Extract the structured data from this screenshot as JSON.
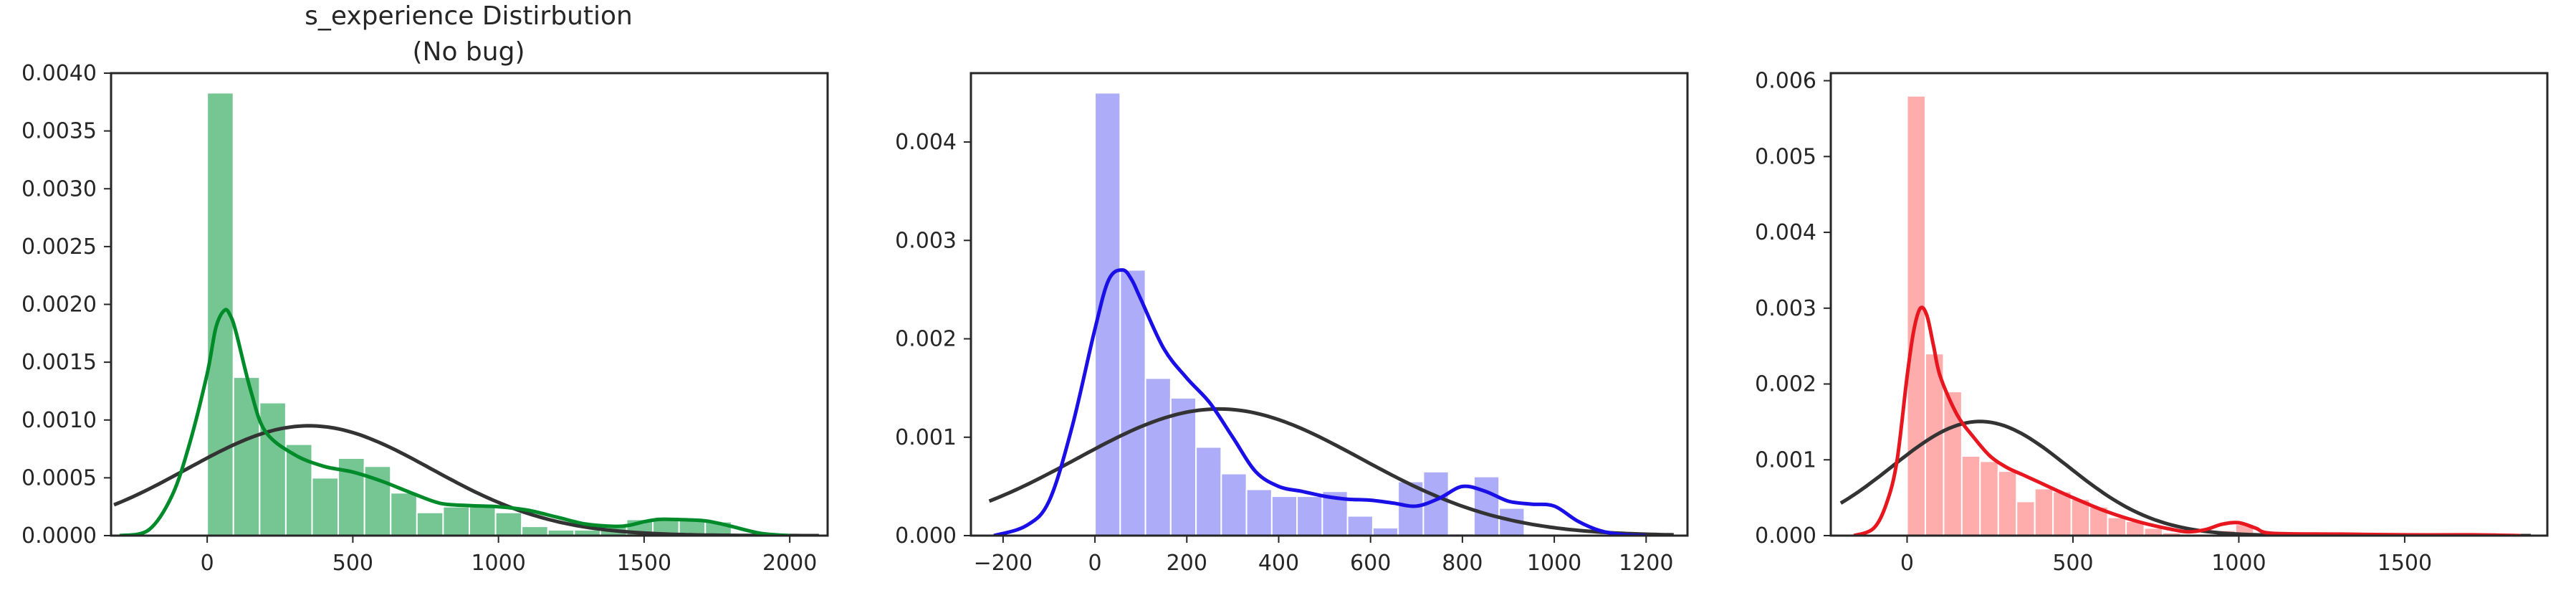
{
  "chart_data": [
    {
      "type": "bar",
      "title": "s_experience Distirbution",
      "subtitle": "(No bug)",
      "xlabel": "",
      "ylabel": "",
      "xlim": [
        -330,
        2130
      ],
      "ylim": [
        0,
        0.004
      ],
      "xticks": [
        0,
        500,
        1000,
        1500,
        2000
      ],
      "xtick_labels": [
        "0",
        "500",
        "1000",
        "1500",
        "2000"
      ],
      "yticks": [
        0,
        0.0005,
        0.001,
        0.0015,
        0.002,
        0.0025,
        0.003,
        0.0035,
        0.004
      ],
      "ytick_labels": [
        "0.0000",
        "0.0005",
        "0.0010",
        "0.0015",
        "0.0020",
        "0.0025",
        "0.0030",
        "0.0035",
        "0.0040"
      ],
      "grid": false,
      "hist_color": "#2ca85a",
      "kde_color": "#008b2b",
      "fit_color": "#333333",
      "bins": {
        "start": 0,
        "width": 90,
        "heights": [
          0.00383,
          0.00137,
          0.00115,
          0.00079,
          0.0005,
          0.00067,
          0.0006,
          0.00037,
          0.0002,
          0.00025,
          0.00025,
          0.0002,
          8e-05,
          5e-05,
          5e-05,
          0.0001,
          0.00014,
          0.00014,
          0.00013,
          0.00012
        ]
      },
      "kde": {
        "x": [
          -300,
          -200,
          -120,
          -60,
          0,
          30,
          60,
          80,
          100,
          150,
          200,
          300,
          400,
          500,
          600,
          700,
          800,
          900,
          1000,
          1100,
          1200,
          1300,
          1400,
          1450,
          1500,
          1550,
          1600,
          1700,
          1750,
          1800,
          1900,
          2000
        ],
        "y": [
          0,
          5e-05,
          0.00035,
          0.0008,
          0.0014,
          0.0018,
          0.00195,
          0.0019,
          0.00175,
          0.00125,
          0.0009,
          0.0007,
          0.0006,
          0.00055,
          0.00047,
          0.00037,
          0.00028,
          0.00026,
          0.00025,
          0.00022,
          0.00016,
          0.0001,
          8e-05,
          9e-05,
          0.00012,
          0.00014,
          0.00014,
          0.00013,
          0.00011,
          8e-05,
          2e-05,
          0
        ]
      },
      "fit": {
        "mean": 350,
        "std": 420,
        "xmin": -320,
        "xmax": 2100
      }
    },
    {
      "type": "bar",
      "title": "",
      "xlabel": "",
      "ylabel": "",
      "xlim": [
        -270,
        1290
      ],
      "ylim": [
        0,
        0.0047
      ],
      "xticks": [
        -200,
        0,
        200,
        400,
        600,
        800,
        1000,
        1200
      ],
      "xtick_labels": [
        "−200",
        "0",
        "200",
        "400",
        "600",
        "800",
        "1000",
        "1200"
      ],
      "yticks": [
        0,
        0.001,
        0.002,
        0.003,
        0.004
      ],
      "ytick_labels": [
        "0.000",
        "0.001",
        "0.002",
        "0.003",
        "0.004"
      ],
      "grid": false,
      "hist_color": "#7f7ff5",
      "kde_color": "#1a0fe6",
      "fit_color": "#333333",
      "bins": {
        "start": 0,
        "width": 55,
        "heights": [
          0.0045,
          0.0027,
          0.0016,
          0.0014,
          0.0009,
          0.00063,
          0.00047,
          0.0004,
          0.0004,
          0.00045,
          0.0002,
          8e-05,
          0.00055,
          0.00065,
          2e-05,
          0.0006,
          0.00028
        ]
      },
      "kde": {
        "x": [
          -220,
          -150,
          -100,
          -50,
          0,
          30,
          60,
          80,
          100,
          150,
          200,
          250,
          300,
          350,
          400,
          450,
          500,
          550,
          600,
          650,
          700,
          750,
          800,
          850,
          900,
          950,
          1000,
          1050,
          1100,
          1150,
          1200
        ],
        "y": [
          0,
          0.0001,
          0.00035,
          0.0011,
          0.0021,
          0.0026,
          0.0027,
          0.0026,
          0.0024,
          0.0019,
          0.0016,
          0.00135,
          0.001,
          0.00065,
          0.0005,
          0.00045,
          0.0004,
          0.00037,
          0.00036,
          0.00033,
          0.0003,
          0.00038,
          0.0005,
          0.00045,
          0.00035,
          0.00032,
          0.0003,
          0.00015,
          5e-05,
          1e-05,
          0
        ]
      },
      "fit": {
        "mean": 270,
        "std": 310,
        "xmin": -230,
        "xmax": 1260
      }
    },
    {
      "type": "bar",
      "title": "",
      "xlabel": "",
      "ylabel": "",
      "xlim": [
        -230,
        1930
      ],
      "ylim": [
        0,
        0.0061
      ],
      "xticks": [
        0,
        500,
        1000,
        1500
      ],
      "xtick_labels": [
        "0",
        "500",
        "1000",
        "1500"
      ],
      "yticks": [
        0,
        0.001,
        0.002,
        0.003,
        0.004,
        0.005,
        0.006
      ],
      "ytick_labels": [
        "0.000",
        "0.001",
        "0.002",
        "0.003",
        "0.004",
        "0.005",
        "0.006"
      ],
      "grid": false,
      "hist_color": "#ff8080",
      "kde_color": "#e8161e",
      "fit_color": "#333333",
      "bins": {
        "start": 0,
        "width": 55,
        "heights": [
          0.0058,
          0.0024,
          0.0019,
          0.00105,
          0.00098,
          0.00085,
          0.00045,
          0.00062,
          0.00058,
          0.00048,
          0.00038,
          0.00024,
          0.00019,
          0.0001,
          4e-05,
          2e-05,
          1e-05,
          7e-05,
          0.00015,
          2e-05,
          1e-05,
          1e-05
        ]
      },
      "kde": {
        "x": [
          -160,
          -100,
          -60,
          -30,
          0,
          20,
          40,
          60,
          80,
          100,
          150,
          200,
          250,
          300,
          350,
          400,
          500,
          600,
          700,
          800,
          850,
          900,
          950,
          1000,
          1050,
          1100,
          1300,
          1500,
          1700,
          1850
        ],
        "y": [
          0,
          0.0001,
          0.00045,
          0.001,
          0.0021,
          0.0027,
          0.003,
          0.0029,
          0.0025,
          0.0021,
          0.0016,
          0.0013,
          0.00105,
          0.0009,
          0.0008,
          0.0007,
          0.0005,
          0.00032,
          0.00018,
          8e-05,
          5e-05,
          8e-05,
          0.00015,
          0.00017,
          0.0001,
          3e-05,
          2e-05,
          1e-05,
          1e-05,
          0
        ]
      },
      "fit": {
        "mean": 220,
        "std": 265,
        "xmin": -200,
        "xmax": 1880
      }
    }
  ]
}
